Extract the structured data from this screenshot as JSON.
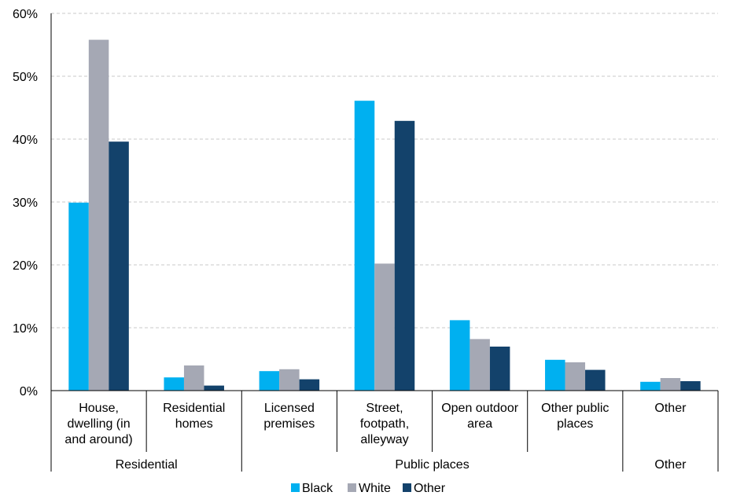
{
  "chart_data": {
    "type": "bar",
    "categories": [
      "House, dwelling (in and around)",
      "Residential homes",
      "Licensed premises",
      "Street, footpath, alleyway",
      "Open outdoor area",
      "Other public places",
      "Other"
    ],
    "category_lines": [
      [
        "House,",
        "dwelling (in",
        "and around)"
      ],
      [
        "Residential",
        "homes"
      ],
      [
        "Licensed",
        "premises"
      ],
      [
        "Street,",
        "footpath,",
        "alleyway"
      ],
      [
        "Open outdoor",
        "area"
      ],
      [
        "Other public",
        "places"
      ],
      [
        "Other"
      ]
    ],
    "groups": [
      {
        "label": "Residential",
        "span": [
          0,
          1
        ]
      },
      {
        "label": "Public places",
        "span": [
          2,
          5
        ]
      },
      {
        "label": "Other",
        "span": [
          6,
          6
        ]
      }
    ],
    "series": [
      {
        "name": "Black",
        "color": "#00b0f0",
        "values": [
          29.9,
          2.1,
          3.1,
          46.1,
          11.2,
          4.9,
          1.4
        ]
      },
      {
        "name": "White",
        "color": "#a5a8b4",
        "values": [
          55.8,
          4.0,
          3.4,
          20.2,
          8.2,
          4.5,
          2.0
        ]
      },
      {
        "name": "Other",
        "color": "#13426b",
        "values": [
          39.6,
          0.8,
          1.8,
          42.9,
          7.0,
          3.3,
          1.5
        ]
      }
    ],
    "yticks": [
      "0%",
      "10%",
      "20%",
      "30%",
      "40%",
      "50%",
      "60%"
    ],
    "ylim": [
      0,
      60
    ],
    "grid": true,
    "legend_position": "bottom-center",
    "title": "",
    "xlabel": "",
    "ylabel": ""
  }
}
